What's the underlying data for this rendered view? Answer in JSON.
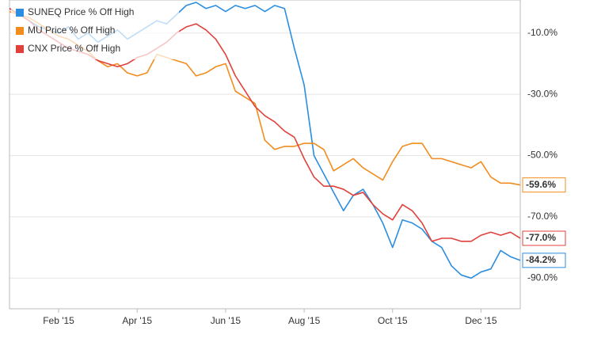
{
  "chart_data": {
    "type": "line",
    "x": [
      null,
      null,
      null,
      null,
      null,
      "Feb '15",
      null,
      null,
      null,
      null,
      null,
      null,
      null,
      "Apr '15",
      null,
      null,
      null,
      null,
      null,
      null,
      null,
      null,
      "Jun '15",
      null,
      null,
      null,
      null,
      null,
      null,
      null,
      "Aug '15",
      null,
      null,
      null,
      null,
      null,
      null,
      null,
      null,
      "Oct '15",
      null,
      null,
      null,
      null,
      null,
      null,
      null,
      null,
      "Dec '15",
      null,
      null,
      null,
      null
    ],
    "series": [
      {
        "name": "SUNEQ Price % Off High",
        "color": "#2b8de0",
        "last_label": "-84.2%",
        "values": [
          -2,
          -4,
          -6,
          -8,
          -9,
          -10,
          -8,
          -12,
          -10,
          -13,
          -11,
          -9,
          -12,
          -10,
          -8,
          -6,
          -7,
          -4,
          -1,
          0,
          -2,
          -1,
          -3,
          -1,
          -2,
          -1,
          -3,
          -1,
          -2,
          -15,
          -27,
          -50,
          -56,
          -62,
          -68,
          -63,
          -61,
          -66,
          -72,
          -80,
          -71,
          -72,
          -74,
          -78,
          -80,
          -86,
          -89,
          -90,
          -88,
          -87,
          -81,
          -83,
          -84.2
        ]
      },
      {
        "name": "MU Price % Off High",
        "color": "#f28c1c",
        "last_label": "-59.6%",
        "values": [
          -3,
          -4,
          -5,
          -7,
          -9,
          -11,
          -12,
          -14,
          -16,
          -19,
          -21,
          -20,
          -23,
          -24,
          -23,
          -17,
          -18,
          -19,
          -20,
          -24,
          -23,
          -21,
          -20,
          -29,
          -31,
          -33,
          -45,
          -48,
          -47,
          -47,
          -46,
          -46,
          -48,
          -55,
          -53,
          -51,
          -54,
          -56,
          -58,
          -52,
          -47,
          -46,
          -46,
          -51,
          -51,
          -52,
          -53,
          -54,
          -52,
          -57,
          -59,
          -59,
          -59.6
        ]
      },
      {
        "name": "CNX Price % Off High",
        "color": "#e0413b",
        "last_label": "-77.0%",
        "values": [
          -2,
          -4,
          -6,
          -9,
          -11,
          -13,
          -15,
          -16,
          -17,
          -19,
          -20,
          -21,
          -20,
          -18,
          -17,
          -15,
          -13,
          -10,
          -8,
          -7,
          -9,
          -12,
          -17,
          -24,
          -29,
          -34,
          -37,
          -39,
          -42,
          -44,
          -51,
          -57,
          -60,
          -60,
          -61,
          -63,
          -62,
          -66,
          -69,
          -71,
          -66,
          -68,
          -72,
          -78,
          -77,
          -77,
          -78,
          -78,
          -76,
          -75,
          -76,
          -75,
          -77
        ]
      }
    ],
    "ylim": [
      -100,
      0
    ],
    "yticks": [
      {
        "value": -10,
        "label": "-10.0%"
      },
      {
        "value": -30,
        "label": "-30.0%"
      },
      {
        "value": -50,
        "label": "-50.0%"
      },
      {
        "value": -70,
        "label": "-70.0%"
      },
      {
        "value": -90,
        "label": "-90.0%"
      }
    ],
    "grid": true,
    "legend": "top-left"
  }
}
